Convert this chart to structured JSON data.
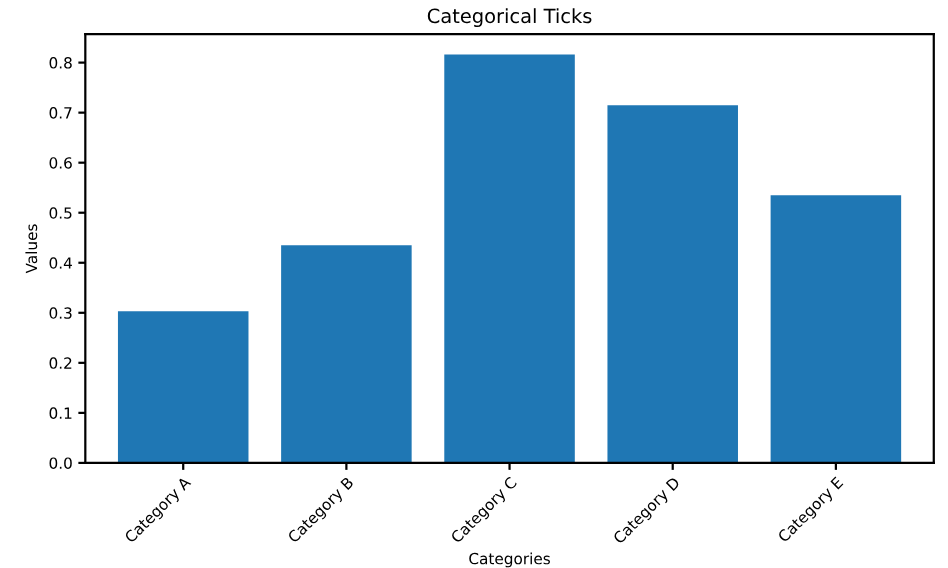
{
  "chart_data": {
    "type": "bar",
    "title": "Categorical Ticks",
    "xlabel": "Categories",
    "ylabel": "Values",
    "categories": [
      "Category A",
      "Category B",
      "Category C",
      "Category D",
      "Category E"
    ],
    "values": [
      0.303,
      0.435,
      0.816,
      0.715,
      0.535
    ],
    "color": "#1f77b4",
    "ylim": [
      0,
      0.857
    ],
    "yticks": [
      {
        "value": 0,
        "label": "0.0"
      },
      0.1,
      0.2,
      0.3,
      0.4,
      0.5,
      0.6,
      0.7,
      0.8
    ],
    "grid": false
  }
}
